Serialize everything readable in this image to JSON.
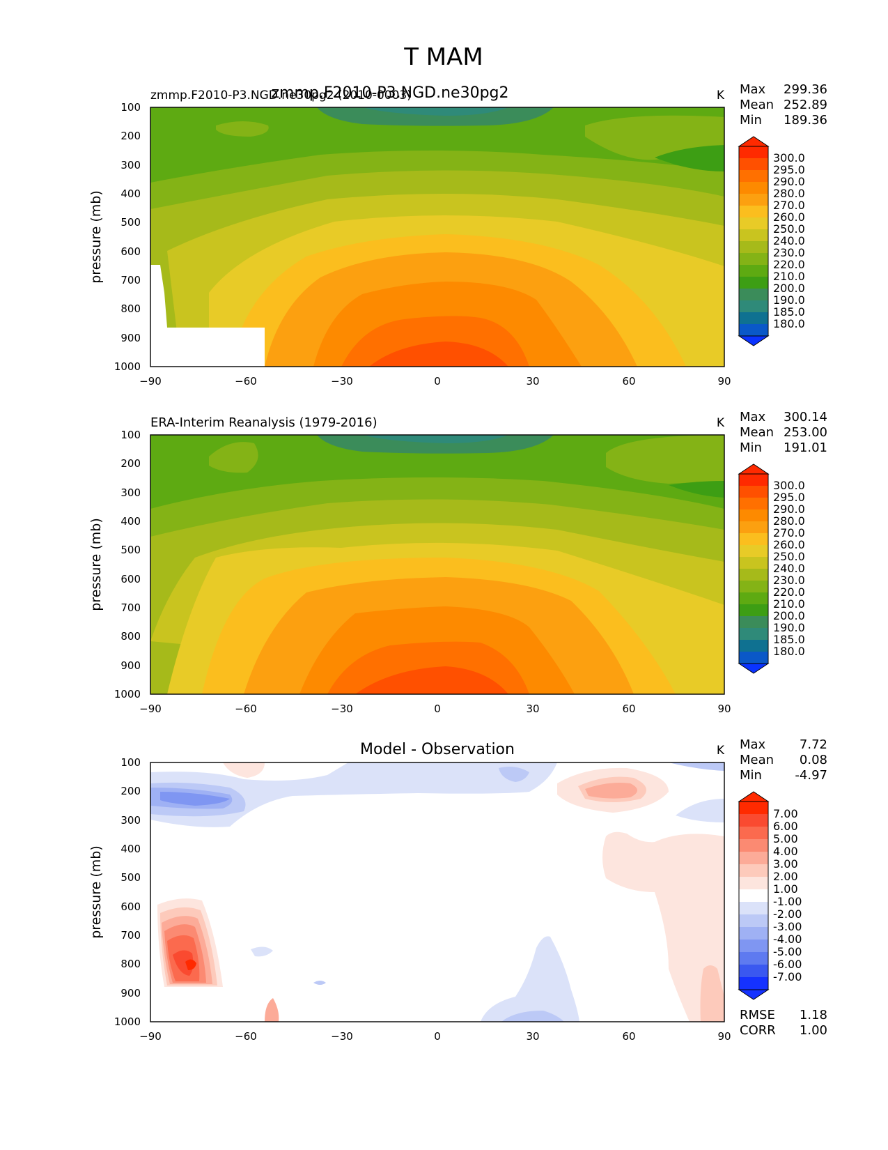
{
  "figure": {
    "title": "T MAM"
  },
  "chart_data": [
    {
      "type": "contour",
      "id": "model",
      "left_title": "zmmp.F2010-P3.NGD.ne30pg2 (2010-0003)",
      "center_title": "zmmp.F2010-P3.NGD.ne30pg2",
      "units": "K",
      "ylabel": "pressure (mb)",
      "xlim": [
        -90,
        90
      ],
      "ylim": [
        1000,
        100
      ],
      "xticks": [
        "−90",
        "−60",
        "−30",
        "0",
        "30",
        "60",
        "90"
      ],
      "yticks": [
        "100",
        "200",
        "300",
        "400",
        "500",
        "600",
        "700",
        "800",
        "900",
        "1000"
      ],
      "stats": {
        "max_label": "Max",
        "max": "299.36",
        "mean_label": "Mean",
        "mean": "252.89",
        "min_label": "Min",
        "min": "189.36"
      },
      "levels": [
        "300.0",
        "295.0",
        "290.0",
        "280.0",
        "270.0",
        "260.0",
        "250.0",
        "240.0",
        "230.0",
        "220.0",
        "210.0",
        "200.0",
        "190.0",
        "185.0",
        "180.0"
      ],
      "colors": [
        "#ff2a00",
        "#ff5000",
        "#ff7000",
        "#fd8a00",
        "#fca010",
        "#fbbe1e",
        "#e8cb27",
        "#c9c41f",
        "#a6ba1a",
        "#84b316",
        "#5eaa12",
        "#3d9e14",
        "#3b8c5a",
        "#2f8a79",
        "#0f7191",
        "#0a58c8",
        "#0a33ff"
      ]
    },
    {
      "type": "contour",
      "id": "obs",
      "left_title": "ERA-Interim Reanalysis (1979-2016)",
      "center_title": "",
      "units": "K",
      "ylabel": "pressure (mb)",
      "xlim": [
        -90,
        90
      ],
      "ylim": [
        1000,
        100
      ],
      "xticks": [
        "−90",
        "−60",
        "−30",
        "0",
        "30",
        "60",
        "90"
      ],
      "yticks": [
        "100",
        "200",
        "300",
        "400",
        "500",
        "600",
        "700",
        "800",
        "900",
        "1000"
      ],
      "stats": {
        "max_label": "Max",
        "max": "300.14",
        "mean_label": "Mean",
        "mean": "253.00",
        "min_label": "Min",
        "min": "191.01"
      },
      "levels": [
        "300.0",
        "295.0",
        "290.0",
        "280.0",
        "270.0",
        "260.0",
        "250.0",
        "240.0",
        "230.0",
        "220.0",
        "210.0",
        "200.0",
        "190.0",
        "185.0",
        "180.0"
      ],
      "colors": [
        "#ff2a00",
        "#ff5000",
        "#ff7000",
        "#fd8a00",
        "#fca010",
        "#fbbe1e",
        "#e8cb27",
        "#c9c41f",
        "#a6ba1a",
        "#84b316",
        "#5eaa12",
        "#3d9e14",
        "#3b8c5a",
        "#2f8a79",
        "#0f7191",
        "#0a58c8",
        "#0a33ff"
      ]
    },
    {
      "type": "contour",
      "id": "diff",
      "left_title": "",
      "center_title": "Model - Observation",
      "units": "K",
      "ylabel": "pressure (mb)",
      "xlim": [
        -90,
        90
      ],
      "ylim": [
        1000,
        100
      ],
      "xticks": [
        "−90",
        "−60",
        "−30",
        "0",
        "30",
        "60",
        "90"
      ],
      "yticks": [
        "100",
        "200",
        "300",
        "400",
        "500",
        "600",
        "700",
        "800",
        "900",
        "1000"
      ],
      "stats": {
        "max_label": "Max",
        "max": "7.72",
        "mean_label": "Mean",
        "mean": "0.08",
        "min_label": "Min",
        "min": "-4.97"
      },
      "extra_stats": {
        "rmse_label": "RMSE",
        "rmse": "1.18",
        "corr_label": "CORR",
        "corr": "1.00"
      },
      "levels": [
        "7.00",
        "6.00",
        "5.00",
        "4.00",
        "3.00",
        "2.00",
        "1.00",
        "-1.00",
        "-2.00",
        "-3.00",
        "-4.00",
        "-5.00",
        "-6.00",
        "-7.00"
      ],
      "colors": [
        "#ff2a00",
        "#fa4a30",
        "#fb6a4e",
        "#fb8a72",
        "#fcab98",
        "#fdcabb",
        "#fde5de",
        "#ffffff",
        "#dbe2f9",
        "#bcc9f6",
        "#9fb1f4",
        "#7f96f2",
        "#5e7af0",
        "#3a58f0",
        "#1532ff"
      ]
    }
  ]
}
